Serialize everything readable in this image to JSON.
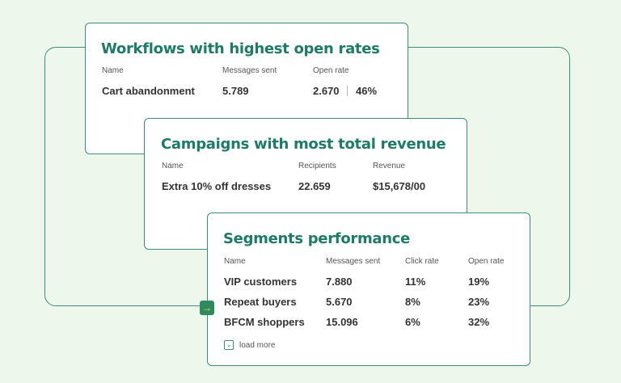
{
  "workflows": {
    "title": "Workflows with highest open rates",
    "headers": [
      "Name",
      "Messages sent",
      "Open rate"
    ],
    "row": {
      "name": "Cart abandonment",
      "messages_sent": "5.789",
      "open_count": "2.670",
      "open_rate": "46%"
    }
  },
  "campaigns": {
    "title": "Campaigns with most total revenue",
    "headers": [
      "Name",
      "Recipients",
      "Revenue"
    ],
    "row": {
      "name": "Extra 10% off dresses",
      "recipients": "22.659",
      "revenue": "$15,678/00"
    }
  },
  "segments": {
    "title": "Segments performance",
    "headers": [
      "Name",
      "Messages sent",
      "Click rate",
      "Open rate"
    ],
    "rows": [
      {
        "name": "VIP customers",
        "messages_sent": "7.880",
        "click_rate": "11%",
        "open_rate": "19%"
      },
      {
        "name": "Repeat buyers",
        "messages_sent": "5.670",
        "click_rate": "8%",
        "open_rate": "23%"
      },
      {
        "name": "BFCM shoppers",
        "messages_sent": "15.096",
        "click_rate": "6%",
        "open_rate": "32%"
      }
    ],
    "load_more_label": "load more"
  },
  "colors": {
    "accent": "#1f7a67",
    "border": "#3f8c79",
    "background": "#eef7ec"
  },
  "icons": {
    "connector": "arrow-right-icon",
    "load_more": "chevron-down-icon"
  }
}
